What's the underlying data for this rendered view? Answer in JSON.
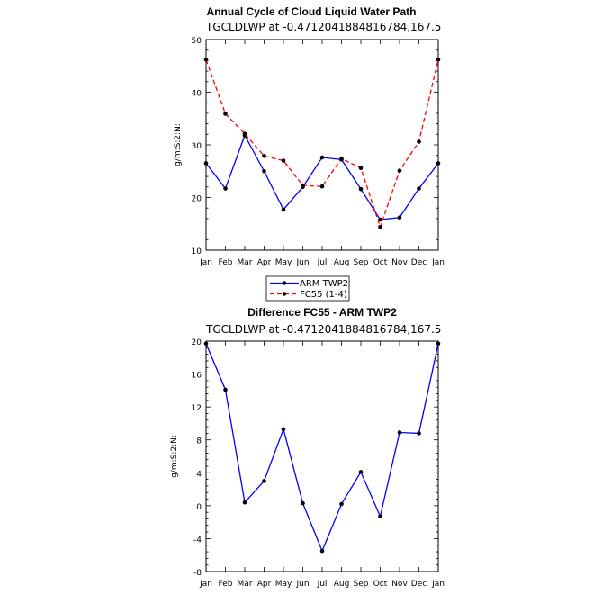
{
  "chart_data": [
    {
      "type": "line",
      "title": "Annual Cycle of Cloud Liquid Water Path",
      "subtitle": "TGCLDLWP at -0.4712041884816784,167.5",
      "ylabel": "g/m:S:2:N:",
      "categories": [
        "Jan",
        "Feb",
        "Mar",
        "Apr",
        "May",
        "Jun",
        "Jul",
        "Aug",
        "Sep",
        "Oct",
        "Nov",
        "Dec",
        "Jan"
      ],
      "ylim": [
        10,
        50
      ],
      "yticks": [
        "10",
        "20",
        "30",
        "40",
        "50"
      ],
      "series": [
        {
          "name": "ARM TWP2",
          "color": "#0000ff",
          "dash": "solid",
          "values": [
            26.5,
            21.7,
            31.8,
            25.0,
            17.7,
            22.0,
            27.6,
            27.2,
            21.6,
            15.8,
            16.2,
            21.7,
            26.5
          ]
        },
        {
          "name": "FC55 (1-4)",
          "color": "#ff0000",
          "dash": "dashed",
          "values": [
            46.2,
            35.9,
            32.1,
            27.9,
            27.0,
            22.3,
            22.1,
            27.4,
            25.6,
            14.4,
            25.1,
            30.6,
            46.2
          ]
        }
      ],
      "legend": "bottom"
    },
    {
      "type": "line",
      "title": "Difference FC55 - ARM TWP2",
      "subtitle": "TGCLDLWP at -0.4712041884816784,167.5",
      "ylabel": "g/m:S:2:N:",
      "categories": [
        "Jan",
        "Feb",
        "Mar",
        "Apr",
        "May",
        "Jun",
        "Jul",
        "Aug",
        "Sep",
        "Oct",
        "Nov",
        "Dec",
        "Jan"
      ],
      "ylim": [
        -8,
        20
      ],
      "yticks": [
        "-8",
        "-4",
        "0",
        "4",
        "8",
        "12",
        "16",
        "20"
      ],
      "series": [
        {
          "color": "#0000ff",
          "dash": "solid",
          "values": [
            19.7,
            14.1,
            0.4,
            3.0,
            9.3,
            0.3,
            -5.5,
            0.2,
            4.1,
            -1.3,
            8.9,
            8.8,
            19.7
          ]
        }
      ]
    }
  ]
}
